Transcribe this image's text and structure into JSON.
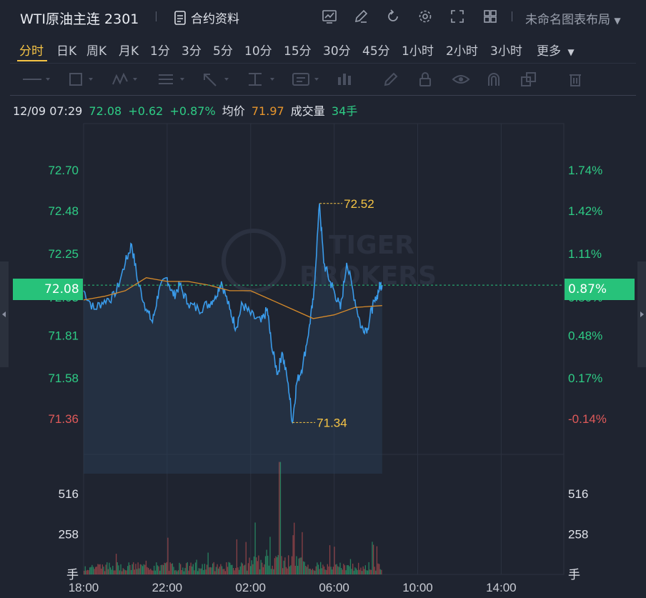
{
  "header": {
    "title": "WTI原油主连 2301",
    "contract_info_label": "合约资料",
    "layout_name": "未命名图表布局",
    "icons": [
      "chart-icon",
      "edit-icon",
      "refresh-icon",
      "settings-icon",
      "fullscreen-icon",
      "grid-icon"
    ]
  },
  "periods": {
    "items": [
      "分时",
      "日K",
      "周K",
      "月K",
      "1分",
      "3分",
      "5分",
      "10分",
      "15分",
      "30分",
      "45分",
      "1小时",
      "2小时",
      "3小时",
      "更多"
    ],
    "active": "分时"
  },
  "drawing_tools": [
    "line-tool-icon",
    "rectangle-tool-icon",
    "pattern-tool-icon",
    "fib-tool-icon",
    "arrow-tool-icon",
    "measure-tool-icon",
    "text-tool-icon",
    "indicator-tool-icon",
    "pen-icon",
    "lock-icon",
    "eye-icon",
    "magnet-icon",
    "clone-icon",
    "trash-icon"
  ],
  "quote": {
    "time": "12/09 07:29",
    "price": "72.08",
    "change": "+0.62",
    "change_pct": "+0.87%",
    "avg_label": "均价",
    "avg": "71.97",
    "volume_label": "成交量",
    "volume": "34手"
  },
  "colors": {
    "background": "#1f2430",
    "up": "#2ecc85",
    "down": "#e05a5a",
    "price_line": "#3a9bea",
    "avg_line": "#d68a2a",
    "highlight": "#f6c445",
    "tag": "#27c27a"
  },
  "chart_data": {
    "type": "line",
    "series": [
      {
        "name": "",
        "values": [
          [
            0,
            72.05
          ],
          [
            0.5,
            71.95
          ],
          [
            1,
            72.0
          ],
          [
            1.5,
            72.02
          ],
          [
            2,
            72.2
          ],
          [
            2.3,
            72.3
          ],
          [
            2.6,
            72.1
          ],
          [
            3,
            71.95
          ],
          [
            3.3,
            71.88
          ],
          [
            3.6,
            72.05
          ],
          [
            4,
            72.12
          ],
          [
            4.3,
            72.02
          ],
          [
            4.6,
            72.08
          ],
          [
            5,
            71.98
          ],
          [
            5.5,
            71.95
          ],
          [
            6,
            71.98
          ],
          [
            6.3,
            72.02
          ],
          [
            6.6,
            72.1
          ],
          [
            7,
            71.95
          ],
          [
            7.3,
            71.85
          ],
          [
            7.6,
            71.98
          ],
          [
            8,
            71.92
          ],
          [
            8.5,
            71.88
          ],
          [
            8.8,
            71.95
          ],
          [
            9,
            71.75
          ],
          [
            9.3,
            71.6
          ],
          [
            9.5,
            71.72
          ],
          [
            9.8,
            71.55
          ],
          [
            10,
            71.34
          ],
          [
            10.2,
            71.55
          ],
          [
            10.5,
            71.65
          ],
          [
            10.8,
            71.85
          ],
          [
            11,
            72.0
          ],
          [
            11.3,
            72.52
          ],
          [
            11.5,
            72.2
          ],
          [
            11.8,
            72.1
          ],
          [
            12,
            72.05
          ],
          [
            12.3,
            71.95
          ],
          [
            12.6,
            72.2
          ],
          [
            13,
            72.0
          ],
          [
            13.3,
            71.85
          ],
          [
            13.6,
            71.85
          ],
          [
            13.8,
            71.95
          ],
          [
            14,
            72.0
          ],
          [
            14.2,
            72.08
          ],
          [
            14.3,
            72.08
          ]
        ]
      },
      {
        "name": "",
        "values": [
          [
            0,
            72.0
          ],
          [
            1,
            72.02
          ],
          [
            2,
            72.05
          ],
          [
            3,
            72.12
          ],
          [
            4,
            72.1
          ],
          [
            5,
            72.1
          ],
          [
            6,
            72.08
          ],
          [
            7,
            72.05
          ],
          [
            8,
            72.05
          ],
          [
            9,
            72.0
          ],
          [
            10,
            71.95
          ],
          [
            11,
            71.9
          ],
          [
            12,
            71.92
          ],
          [
            13,
            71.96
          ],
          [
            14.3,
            71.97
          ]
        ]
      }
    ],
    "x_tick_labels": [
      "18:00",
      "22:00",
      "02:00",
      "06:00",
      "10:00",
      "14:00"
    ],
    "x_ticks": [
      0,
      4,
      8,
      12,
      16,
      20
    ],
    "xlim": [
      0,
      23
    ],
    "y_tick_labels": [
      "72.70",
      "72.48",
      "72.25",
      "71.81",
      "71.58",
      "71.36"
    ],
    "y_ticks": [
      72.7,
      72.48,
      72.25,
      71.81,
      71.58,
      71.36
    ],
    "y_pct_labels": [
      "1.74%",
      "1.42%",
      "1.11%",
      "0.48%",
      "0.17%",
      "-0.14%"
    ],
    "hidden_left_label": "72.03",
    "hidden_right_label": "0.80%",
    "ylim": [
      71.18,
      72.95
    ],
    "high_label": "72.52",
    "high": {
      "x": 11.3,
      "y": 72.52
    },
    "low_label": "71.34",
    "low": {
      "x": 10.0,
      "y": 71.34
    },
    "current_price_label": "72.08",
    "current_pct_label": "0.87%",
    "current_price": 72.08,
    "volume": {
      "y_tick_labels": [
        "516",
        "258"
      ],
      "y_ticks": [
        516,
        258
      ],
      "unit_label": "手",
      "ylim": [
        0,
        750
      ],
      "peak": 720
    },
    "watermark_line1": "TIGER",
    "watermark_line2": "BROKERS"
  }
}
